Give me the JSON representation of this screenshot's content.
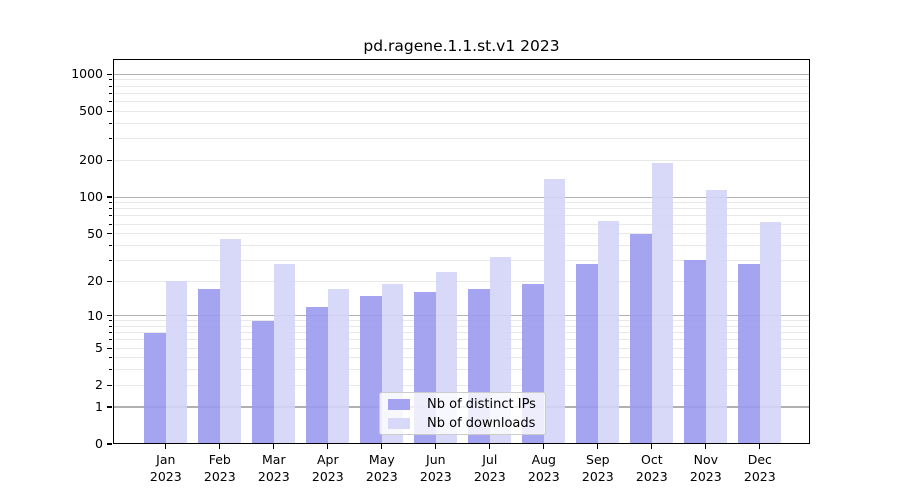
{
  "title": "pd.ragene.1.1.st.v1 2023",
  "chart_data": {
    "type": "bar",
    "categories": [
      "Jan",
      "Feb",
      "Mar",
      "Apr",
      "May",
      "Jun",
      "Jul",
      "Aug",
      "Sep",
      "Oct",
      "Nov",
      "Dec"
    ],
    "year": "2023",
    "series": [
      {
        "name": "Nb of distinct IPs",
        "color": "#9a9af0",
        "values": [
          7,
          17,
          9,
          12,
          15,
          16,
          17,
          19,
          28,
          50,
          30,
          28
        ]
      },
      {
        "name": "Nb of downloads",
        "color": "#d4d4f7",
        "values": [
          20,
          45,
          28,
          17,
          19,
          24,
          32,
          140,
          64,
          190,
          115,
          62
        ]
      }
    ],
    "xlabel": "",
    "ylabel": "",
    "yscale": "log1p",
    "ylim": [
      0,
      1330
    ],
    "yticks": [
      0,
      1,
      2,
      5,
      10,
      20,
      50,
      100,
      200,
      500,
      1000
    ],
    "ytick_labels": [
      "0",
      "1",
      "2",
      "5",
      "10",
      "20",
      "50",
      "100",
      "200",
      "500",
      "1000"
    ],
    "minor_yticks": [
      3,
      4,
      6,
      7,
      8,
      9,
      30,
      40,
      60,
      70,
      80,
      90,
      300,
      400,
      600,
      700,
      800,
      900
    ],
    "major_grid_values": [
      1,
      10,
      100,
      1000
    ],
    "grid": true,
    "legend_position": "lower center"
  },
  "legend": {
    "swatch_colors": [
      "#a3a3f1",
      "#d8d8f8"
    ]
  },
  "colors": {
    "background": "#ffffff",
    "major_grid": "#b0b0b0",
    "minor_grid": "#e8e8e8",
    "spine": "#000000",
    "legend_border": "#cccccc"
  }
}
